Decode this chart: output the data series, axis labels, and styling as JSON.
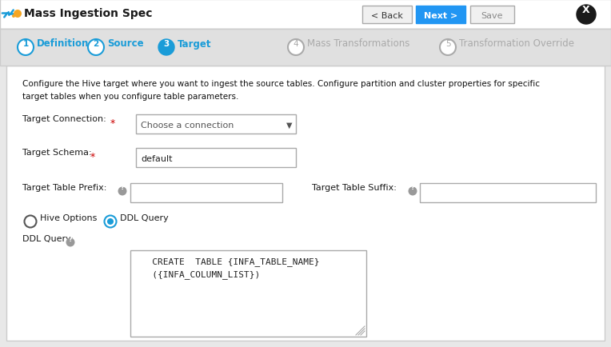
{
  "title": "Mass Ingestion Spec",
  "bg_color": "#e8e8e8",
  "panel_bg": "#ffffff",
  "header_bg": "#ffffff",
  "btn_back_text": "< Back",
  "btn_next_text": "Next >",
  "btn_save_text": "Save",
  "nav_steps": [
    "Definition",
    "Source",
    "Target",
    "Mass Transformations",
    "Transformation Override"
  ],
  "nav_active": 2,
  "description_line1": "Configure the Hive target where you want to ingest the source tables. Configure partition and cluster properties for specific",
  "description_line2": "target tables when you configure table parameters.",
  "ddl_text_line1": "   CREATE  TABLE {INFA_TABLE_NAME}",
  "ddl_text_line2": "   ({INFA_COLUMN_LIST})",
  "active_step_color": "#1a9cd8",
  "inactive_step_color": "#aaaaaa",
  "next_btn_color": "#2196f3",
  "label_color": "#1a1a1a",
  "required_color": "#cc0000",
  "text_color": "#222222",
  "border_color": "#bbbbbb",
  "help_bg": "#999999",
  "icon_blue": "#1a9cd8",
  "icon_orange": "#f5a623",
  "nav_bg": "#e0e0e0",
  "desc_color": "#1a1a2e"
}
